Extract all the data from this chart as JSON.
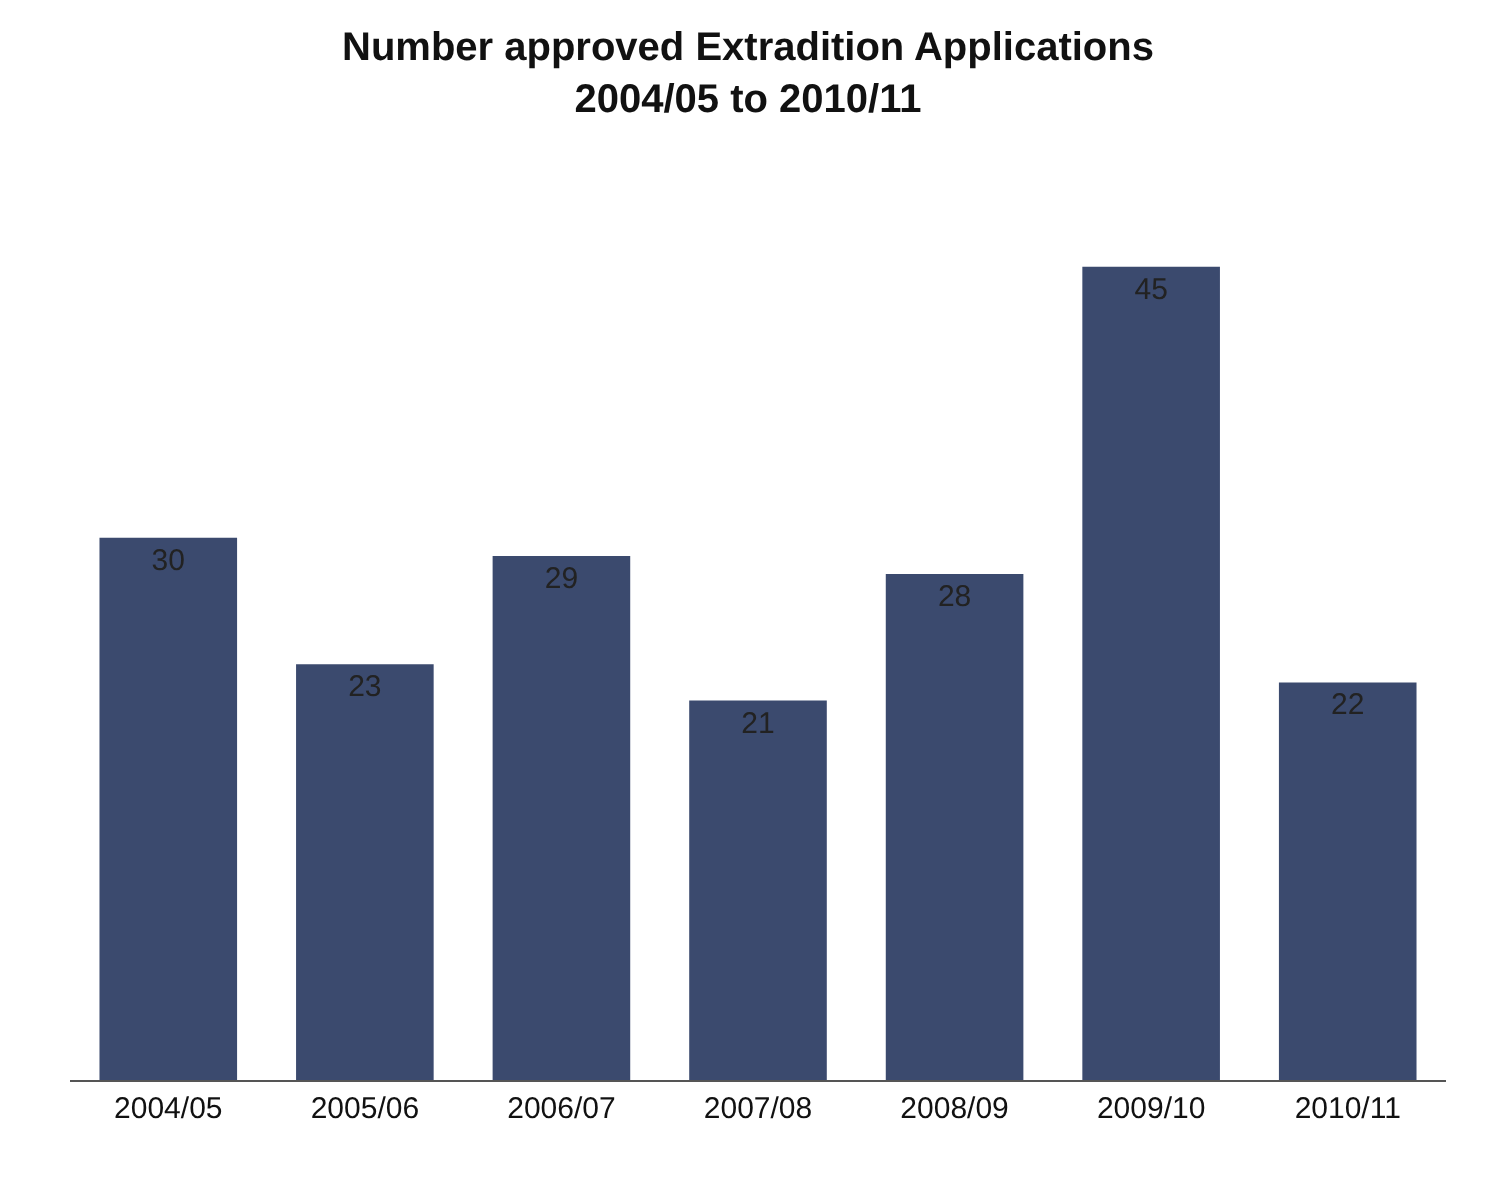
{
  "chart_data": {
    "type": "bar",
    "title": "Number approved Extradition Applications\n2004/05 to 2010/11",
    "categories": [
      "2004/05",
      "2005/06",
      "2006/07",
      "2007/08",
      "2008/09",
      "2009/10",
      "2010/11"
    ],
    "values": [
      30,
      23,
      29,
      21,
      28,
      45,
      22
    ],
    "color": "#3b4a6e",
    "data_labels": true
  }
}
